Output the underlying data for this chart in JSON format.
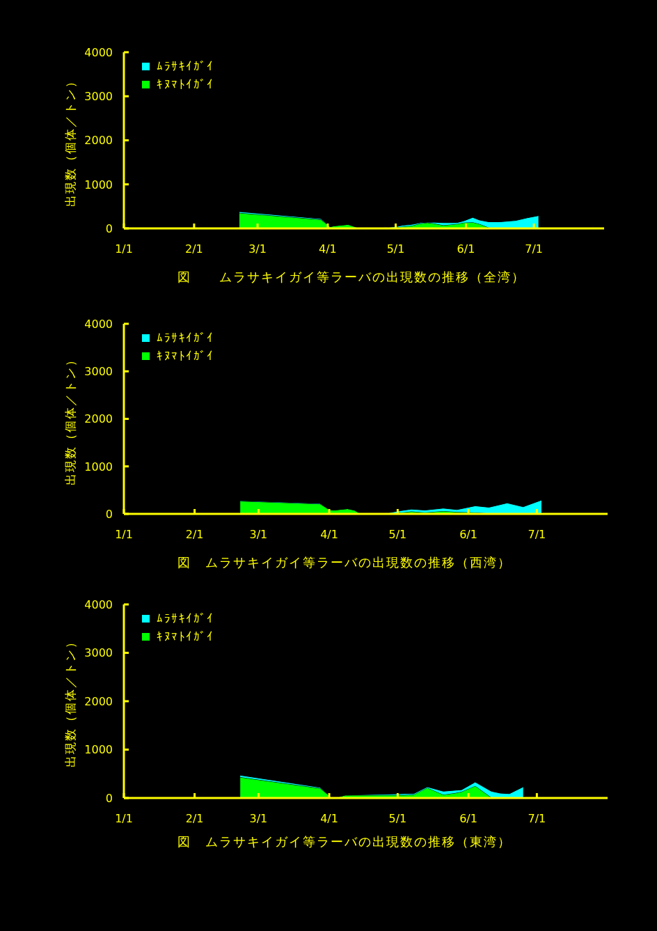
{
  "chart_data": [
    {
      "type": "area",
      "title": "図　　ムラサキイガイ等ラーバの出現数の推移（全湾）",
      "ylabel": "出現数（個体／トン）",
      "stacked": true,
      "legend": "top left",
      "xlim": [
        "--01-01",
        "--08-01"
      ],
      "xticks": [
        {
          "value": "--01-01",
          "label": "1/1"
        },
        {
          "value": "--02-01",
          "label": "2/1"
        },
        {
          "value": "--03-01",
          "label": "3/1"
        },
        {
          "value": "--04-01",
          "label": "4/1"
        },
        {
          "value": "--05-01",
          "label": "5/1"
        },
        {
          "value": "--06-01",
          "label": "6/1"
        },
        {
          "value": "--07-01",
          "label": "7/1"
        }
      ],
      "ylim": [
        0,
        4000
      ],
      "yticks": [
        0,
        1000,
        2000,
        3000,
        4000
      ],
      "x": [
        "--02-21",
        "--03-29",
        "--04-02",
        "--04-04",
        "--04-10",
        "--04-13",
        "--04-16",
        "--04-27",
        "--05-01",
        "--05-04",
        "--05-08",
        "--05-12",
        "--05-15",
        "--05-18",
        "--05-22",
        "--05-28",
        "--05-31",
        "--06-04",
        "--06-07",
        "--06-11",
        "--06-16",
        "--06-23",
        "--06-28",
        "--07-03"
      ],
      "series": [
        {
          "name": "ｷﾇﾏﾄｲｶﾞｲ",
          "color": "#00ff00",
          "values": [
            350,
            200,
            40,
            60,
            90,
            40,
            0,
            0,
            20,
            40,
            60,
            110,
            130,
            110,
            70,
            100,
            130,
            140,
            100,
            20,
            0,
            0,
            0,
            0
          ]
        },
        {
          "name": "ﾑﾗｻｷｲｶﾞｲ",
          "color": "#00ffff",
          "values": [
            30,
            20,
            0,
            0,
            0,
            0,
            0,
            20,
            20,
            30,
            30,
            20,
            10,
            30,
            60,
            30,
            40,
            110,
            90,
            130,
            150,
            180,
            240,
            290
          ]
        }
      ]
    },
    {
      "type": "area",
      "title": "図　ムラサキイガイ等ラーバの出現数の推移（西湾）",
      "ylabel": "出現数（個体／トン）",
      "stacked": true,
      "legend": "top left",
      "xlim": [
        "--01-01",
        "--08-01"
      ],
      "xticks": [
        {
          "value": "--01-01",
          "label": "1/1"
        },
        {
          "value": "--02-01",
          "label": "2/1"
        },
        {
          "value": "--03-01",
          "label": "3/1"
        },
        {
          "value": "--04-01",
          "label": "4/1"
        },
        {
          "value": "--05-01",
          "label": "5/1"
        },
        {
          "value": "--06-01",
          "label": "6/1"
        },
        {
          "value": "--07-01",
          "label": "7/1"
        }
      ],
      "ylim": [
        0,
        4000
      ],
      "yticks": [
        0,
        1000,
        2000,
        3000,
        4000
      ],
      "x": [
        "--02-21",
        "--03-28",
        "--04-01",
        "--04-03",
        "--04-09",
        "--04-12",
        "--04-15",
        "--04-25",
        "--04-28",
        "--05-01",
        "--05-07",
        "--05-13",
        "--05-21",
        "--05-27",
        "--06-04",
        "--06-10",
        "--06-18",
        "--06-25",
        "--07-03"
      ],
      "series": [
        {
          "name": "ｷﾇﾏﾄｲｶﾞｲ",
          "color": "#00ff00",
          "values": [
            270,
            210,
            90,
            80,
            110,
            80,
            0,
            0,
            10,
            20,
            50,
            30,
            60,
            40,
            30,
            10,
            0,
            0,
            0
          ]
        },
        {
          "name": "ﾑﾗｻｷｲｶﾞｲ",
          "color": "#00ffff",
          "values": [
            10,
            10,
            0,
            0,
            0,
            0,
            0,
            10,
            20,
            40,
            50,
            50,
            60,
            50,
            140,
            130,
            230,
            150,
            290
          ]
        }
      ]
    },
    {
      "type": "area",
      "title": "図　ムラサキイガイ等ラーバの出現数の推移（東湾）",
      "ylabel": "出現数（個体／トン）",
      "stacked": true,
      "legend": "top left",
      "xlim": [
        "--01-01",
        "--08-01"
      ],
      "xticks": [
        {
          "value": "--01-01",
          "label": "1/1"
        },
        {
          "value": "--02-01",
          "label": "2/1"
        },
        {
          "value": "--03-01",
          "label": "3/1"
        },
        {
          "value": "--04-01",
          "label": "4/1"
        },
        {
          "value": "--05-01",
          "label": "5/1"
        },
        {
          "value": "--06-01",
          "label": "6/1"
        },
        {
          "value": "--07-01",
          "label": "7/1"
        }
      ],
      "ylim": [
        0,
        4000
      ],
      "yticks": [
        0,
        1000,
        2000,
        3000,
        4000
      ],
      "x": [
        "--02-21",
        "--03-28",
        "--03-31",
        "--04-02",
        "--04-04",
        "--04-08",
        "--05-04",
        "--05-08",
        "--05-14",
        "--05-21",
        "--05-26",
        "--05-29",
        "--06-04",
        "--06-11",
        "--06-15",
        "--06-19",
        "--06-25"
      ],
      "series": [
        {
          "name": "ｷﾇﾏﾄｲｶﾞｲ",
          "color": "#00ff00",
          "values": [
            430,
            200,
            90,
            0,
            10,
            60,
            60,
            70,
            210,
            70,
            100,
            130,
            250,
            10,
            0,
            0,
            0
          ]
        },
        {
          "name": "ﾑﾗｻｷｲｶﾞｲ",
          "color": "#00ffff",
          "values": [
            40,
            20,
            0,
            0,
            0,
            0,
            30,
            20,
            20,
            70,
            60,
            40,
            80,
            130,
            100,
            90,
            230
          ]
        }
      ]
    }
  ]
}
